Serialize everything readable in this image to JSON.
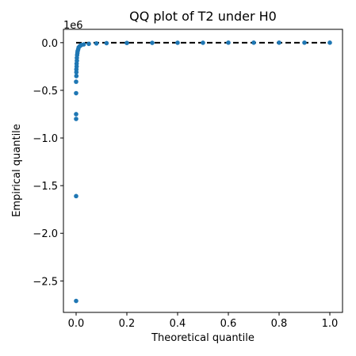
{
  "chart_data": {
    "type": "scatter",
    "title": "QQ plot of T2 under H0",
    "xlabel": "Theoretical quantile",
    "ylabel": "Empirical quantile",
    "y_offset_label": "1e6",
    "xlim": [
      -0.05,
      1.05
    ],
    "ylim": [
      -2.83,
      0.14
    ],
    "x_ticks": [
      0.0,
      0.2,
      0.4,
      0.6,
      0.8,
      1.0
    ],
    "x_tick_labels": [
      "0.0",
      "0.2",
      "0.4",
      "0.6",
      "0.8",
      "1.0"
    ],
    "y_ticks": [
      0.0,
      -0.5,
      -1.0,
      -1.5,
      -2.0,
      -2.5
    ],
    "y_tick_labels": [
      "0.0",
      "−0.5",
      "−1.0",
      "−1.5",
      "−2.0",
      "−2.5"
    ],
    "y_unit_multiplier": 1000000,
    "grid": false,
    "legend": "none",
    "marker_color": "#1f77b4",
    "reference_line_color": "#000000",
    "reference_line": {
      "style": "dashed",
      "x": [
        0.0,
        1.0
      ],
      "y": [
        0.0,
        0.0
      ]
    },
    "series": [
      {
        "x": [
          0.0,
          0.0,
          0.0,
          0.0,
          0.0,
          0.0,
          0.001,
          0.001,
          0.001,
          0.002,
          0.002,
          0.003,
          0.003,
          0.004,
          0.005,
          0.006,
          0.008,
          0.01,
          0.015,
          0.02,
          0.03,
          0.05,
          0.08,
          0.12,
          0.2,
          0.3,
          0.4,
          0.5,
          0.6,
          0.7,
          0.8,
          0.9,
          1.0
        ],
        "y": [
          -2.71,
          -1.61,
          -0.8,
          -0.75,
          -0.53,
          -0.41,
          -0.35,
          -0.31,
          -0.28,
          -0.25,
          -0.22,
          -0.19,
          -0.16,
          -0.13,
          -0.11,
          -0.09,
          -0.07,
          -0.05,
          -0.035,
          -0.025,
          -0.018,
          -0.012,
          -0.008,
          -0.005,
          -0.003,
          -0.002,
          -0.001,
          -0.001,
          0.0,
          0.0,
          0.0,
          0.0,
          0.0
        ]
      }
    ]
  }
}
